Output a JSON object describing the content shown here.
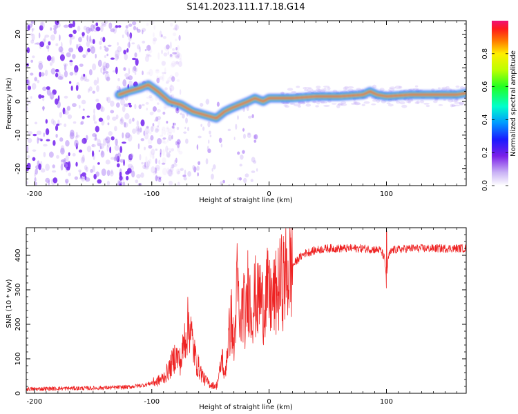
{
  "title": "S141.2023.111.17.18.G14",
  "colors": {
    "snr_line": "#ee2222",
    "spectro_track_core": "#ff2a00",
    "spectro_track_mid": "#00e6a0",
    "spectro_track_edge": "#2233ff",
    "spectro_noise": "#7a2cf0",
    "axis": "#000000"
  },
  "colorbar": {
    "label": "Normalized spectral amplitude",
    "ticks": [
      "0.0",
      "0.2",
      "0.4",
      "0.6",
      "0.8"
    ],
    "tick_values": [
      0.0,
      0.2,
      0.4,
      0.6,
      0.8
    ],
    "range": [
      0,
      1
    ]
  },
  "chart_data": [
    {
      "type": "heatmap",
      "title": "",
      "xlabel": "Height of straight line (km)",
      "ylabel": "Frequency (Hz)",
      "xlim": [
        -207,
        168
      ],
      "ylim": [
        -25,
        24
      ],
      "x_ticks": [
        -200,
        -100,
        0,
        100
      ],
      "x_tick_labels": [
        "-200",
        "-100",
        "0",
        "100"
      ],
      "y_ticks": [
        -20,
        -10,
        0,
        10,
        20
      ],
      "y_tick_labels": [
        "-20",
        "-10",
        "0",
        "10",
        "20"
      ],
      "ridge": {
        "x": [
          -128,
          -120,
          -110,
          -103,
          -95,
          -85,
          -75,
          -65,
          -55,
          -45,
          -38,
          -32,
          -25,
          -18,
          -12,
          -5,
          0,
          20,
          40,
          60,
          80,
          86,
          92,
          100,
          120,
          140,
          160,
          168
        ],
        "y": [
          2,
          3,
          4,
          5,
          3,
          0,
          -1,
          -3,
          -4,
          -5,
          -3,
          -2,
          -1,
          0,
          1,
          0,
          1,
          1,
          1.5,
          1.5,
          2,
          3,
          2,
          1.5,
          2,
          2,
          2,
          2.5
        ]
      },
      "noise_region_x": [
        -207,
        -100
      ]
    },
    {
      "type": "line",
      "title": "",
      "xlabel": "Height of straight line (km)",
      "ylabel": "SNR (10 * v/v)",
      "xlim": [
        -207,
        168
      ],
      "ylim": [
        0,
        480
      ],
      "x_ticks": [
        -200,
        -100,
        0,
        100
      ],
      "x_tick_labels": [
        "-200",
        "-100",
        "0",
        "100"
      ],
      "y_ticks": [
        0,
        100,
        200,
        300,
        400
      ],
      "y_tick_labels": [
        "0",
        "100",
        "200",
        "300",
        "400"
      ],
      "series": [
        {
          "name": "SNR",
          "x": [
            -207,
            -180,
            -150,
            -120,
            -105,
            -95,
            -90,
            -85,
            -80,
            -75,
            -72,
            -68,
            -65,
            -62,
            -58,
            -55,
            -50,
            -45,
            -42,
            -40,
            -38,
            -35,
            -32,
            -30,
            -27,
            -25,
            -22,
            -20,
            -18,
            -15,
            -12,
            -10,
            -8,
            -5,
            -2,
            0,
            5,
            10,
            15,
            20,
            25,
            30,
            40,
            50,
            60,
            80,
            95,
            98,
            100,
            102,
            105,
            120,
            140,
            160,
            168
          ],
          "y": [
            12,
            14,
            15,
            18,
            25,
            35,
            45,
            70,
            110,
            90,
            160,
            210,
            140,
            90,
            60,
            40,
            25,
            20,
            60,
            110,
            40,
            150,
            220,
            120,
            330,
            180,
            270,
            200,
            310,
            240,
            280,
            260,
            290,
            250,
            300,
            270,
            280,
            320,
            340,
            370,
            390,
            405,
            415,
            420,
            420,
            420,
            415,
            395,
            340,
            400,
            415,
            420,
            420,
            420,
            420
          ]
        }
      ],
      "spike": {
        "x": 100,
        "y_max": 470,
        "y_min": 305
      }
    }
  ]
}
